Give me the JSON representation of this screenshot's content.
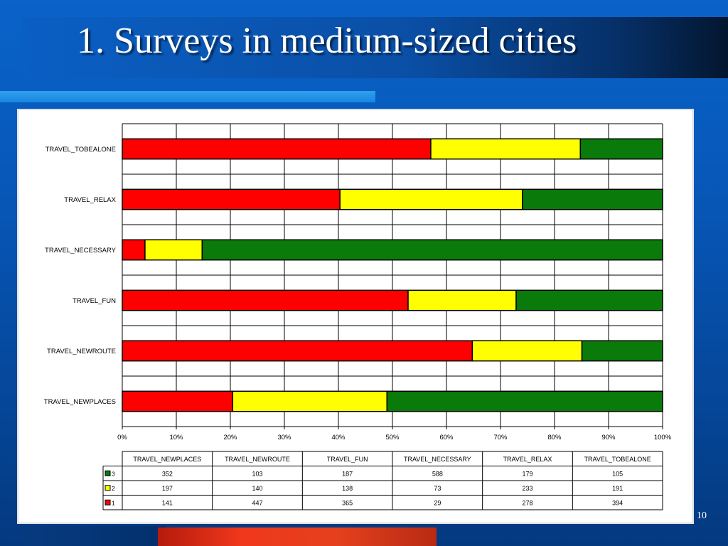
{
  "slide": {
    "title": "1. Surveys in medium-sized cities",
    "page_number": "10"
  },
  "colors": {
    "series_3": "#0a7a0a",
    "series_2": "#ffff00",
    "series_1": "#ff0000"
  },
  "chart_data": {
    "type": "bar",
    "orientation": "horizontal",
    "stacking": "percent",
    "categories": [
      "TRAVEL_TOBEALONE",
      "TRAVEL_RELAX",
      "TRAVEL_NECESSARY",
      "TRAVEL_FUN",
      "TRAVEL_NEWROUTE",
      "TRAVEL_NEWPLACES"
    ],
    "series": [
      {
        "name": "1",
        "color": "#ff0000",
        "values": [
          394,
          278,
          29,
          365,
          447,
          141
        ]
      },
      {
        "name": "2",
        "color": "#ffff00",
        "values": [
          191,
          233,
          73,
          138,
          140,
          197
        ]
      },
      {
        "name": "3",
        "color": "#0a7a0a",
        "values": [
          105,
          179,
          588,
          187,
          103,
          352
        ]
      }
    ],
    "xaxis_ticks": [
      "0%",
      "10%",
      "20%",
      "30%",
      "40%",
      "50%",
      "60%",
      "70%",
      "80%",
      "90%",
      "100%"
    ],
    "xlim": [
      0,
      100
    ],
    "grid": true,
    "legend": "data table below chart",
    "data_table": {
      "columns": [
        "TRAVEL_NEWPLACES",
        "TRAVEL_NEWROUTE",
        "TRAVEL_FUN",
        "TRAVEL_NECESSARY",
        "TRAVEL_RELAX",
        "TRAVEL_TOBEALONE"
      ],
      "rows": [
        {
          "label": "3",
          "color": "#0a7a0a",
          "values": [
            "352",
            "103",
            "187",
            "588",
            "179",
            "105"
          ]
        },
        {
          "label": "2",
          "color": "#ffff00",
          "values": [
            "197",
            "140",
            "138",
            "73",
            "233",
            "191"
          ]
        },
        {
          "label": "1",
          "color": "#ff0000",
          "values": [
            "141",
            "447",
            "365",
            "29",
            "278",
            "394"
          ]
        }
      ]
    }
  }
}
